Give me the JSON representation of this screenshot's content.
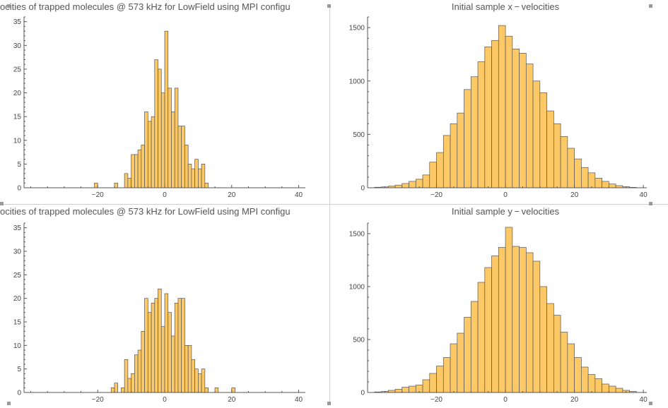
{
  "colors": {
    "bar_fill": "#fdc967",
    "bar_stroke": "#555555",
    "axis": "#555555",
    "title": "#555555"
  },
  "chart_data": [
    {
      "id": "top-left",
      "type": "bar",
      "title": "ocities of trapped molecules @ 573 kHz for LowField using MPI configu",
      "xlim": [
        -42,
        42
      ],
      "ylim": [
        0,
        36
      ],
      "xticks": [
        -20,
        0,
        20,
        40
      ],
      "yticks": [
        0,
        5,
        10,
        15,
        20,
        25,
        30,
        35
      ],
      "bin_width": 1,
      "bins": [
        {
          "x": -21,
          "y": 1
        },
        {
          "x": -15,
          "y": 1
        },
        {
          "x": -12,
          "y": 3
        },
        {
          "x": -11,
          "y": 2
        },
        {
          "x": -10,
          "y": 7
        },
        {
          "x": -9,
          "y": 7
        },
        {
          "x": -8,
          "y": 8
        },
        {
          "x": -7,
          "y": 9
        },
        {
          "x": -6,
          "y": 16
        },
        {
          "x": -5,
          "y": 14
        },
        {
          "x": -4,
          "y": 15
        },
        {
          "x": -3,
          "y": 27
        },
        {
          "x": -2,
          "y": 25
        },
        {
          "x": -1,
          "y": 20
        },
        {
          "x": 0,
          "y": 33
        },
        {
          "x": 1,
          "y": 21
        },
        {
          "x": 2,
          "y": 16
        },
        {
          "x": 3,
          "y": 21
        },
        {
          "x": 4,
          "y": 13
        },
        {
          "x": 5,
          "y": 13
        },
        {
          "x": 6,
          "y": 9
        },
        {
          "x": 7,
          "y": 5
        },
        {
          "x": 8,
          "y": 4
        },
        {
          "x": 9,
          "y": 6
        },
        {
          "x": 10,
          "y": 4
        },
        {
          "x": 11,
          "y": 5
        },
        {
          "x": 12,
          "y": 1
        }
      ]
    },
    {
      "id": "top-right",
      "type": "bar",
      "title": "Initial sample  x − velocities",
      "xlim": [
        -40,
        41
      ],
      "ylim": [
        0,
        1600
      ],
      "xticks": [
        -20,
        0,
        20,
        40
      ],
      "yticks": [
        0,
        500,
        1000,
        1500
      ],
      "bin_width": 2,
      "bins": [
        {
          "x": -38,
          "y": 5
        },
        {
          "x": -36,
          "y": 8
        },
        {
          "x": -34,
          "y": 15
        },
        {
          "x": -32,
          "y": 25
        },
        {
          "x": -30,
          "y": 40
        },
        {
          "x": -28,
          "y": 60
        },
        {
          "x": -26,
          "y": 80
        },
        {
          "x": -24,
          "y": 120
        },
        {
          "x": -22,
          "y": 240
        },
        {
          "x": -20,
          "y": 330
        },
        {
          "x": -18,
          "y": 490
        },
        {
          "x": -16,
          "y": 600
        },
        {
          "x": -14,
          "y": 700
        },
        {
          "x": -12,
          "y": 920
        },
        {
          "x": -10,
          "y": 1040
        },
        {
          "x": -8,
          "y": 1180
        },
        {
          "x": -6,
          "y": 1320
        },
        {
          "x": -4,
          "y": 1380
        },
        {
          "x": -2,
          "y": 1520
        },
        {
          "x": 0,
          "y": 1420
        },
        {
          "x": 2,
          "y": 1300
        },
        {
          "x": 4,
          "y": 1260
        },
        {
          "x": 6,
          "y": 1160
        },
        {
          "x": 8,
          "y": 1000
        },
        {
          "x": 10,
          "y": 890
        },
        {
          "x": 12,
          "y": 720
        },
        {
          "x": 14,
          "y": 600
        },
        {
          "x": 16,
          "y": 480
        },
        {
          "x": 18,
          "y": 370
        },
        {
          "x": 20,
          "y": 270
        },
        {
          "x": 22,
          "y": 190
        },
        {
          "x": 24,
          "y": 140
        },
        {
          "x": 26,
          "y": 90
        },
        {
          "x": 28,
          "y": 60
        },
        {
          "x": 30,
          "y": 35
        },
        {
          "x": 32,
          "y": 20
        },
        {
          "x": 34,
          "y": 10
        },
        {
          "x": 36,
          "y": 4
        }
      ]
    },
    {
      "id": "bottom-left",
      "type": "bar",
      "title": "ocities of trapped molecules @ 573 kHz for LowField using MPI configu",
      "xlim": [
        -42,
        42
      ],
      "ylim": [
        0,
        36
      ],
      "xticks": [
        -20,
        0,
        20,
        40
      ],
      "yticks": [
        0,
        5,
        10,
        15,
        20,
        25,
        30,
        35
      ],
      "bin_width": 1,
      "bins": [
        {
          "x": -16,
          "y": 1
        },
        {
          "x": -15,
          "y": 2
        },
        {
          "x": -13,
          "y": 1
        },
        {
          "x": -12,
          "y": 7
        },
        {
          "x": -11,
          "y": 3
        },
        {
          "x": -10,
          "y": 4
        },
        {
          "x": -9,
          "y": 8
        },
        {
          "x": -8,
          "y": 9
        },
        {
          "x": -7,
          "y": 13
        },
        {
          "x": -6,
          "y": 20
        },
        {
          "x": -5,
          "y": 17
        },
        {
          "x": -4,
          "y": 19
        },
        {
          "x": -3,
          "y": 20
        },
        {
          "x": -2,
          "y": 22
        },
        {
          "x": -1,
          "y": 14
        },
        {
          "x": 0,
          "y": 21
        },
        {
          "x": 1,
          "y": 17
        },
        {
          "x": 2,
          "y": 12
        },
        {
          "x": 3,
          "y": 19
        },
        {
          "x": 4,
          "y": 20
        },
        {
          "x": 5,
          "y": 20
        },
        {
          "x": 6,
          "y": 10
        },
        {
          "x": 7,
          "y": 10
        },
        {
          "x": 8,
          "y": 7
        },
        {
          "x": 9,
          "y": 5
        },
        {
          "x": 10,
          "y": 4
        },
        {
          "x": 11,
          "y": 5
        },
        {
          "x": 12,
          "y": 1
        },
        {
          "x": 15,
          "y": 1
        },
        {
          "x": 20,
          "y": 1
        }
      ]
    },
    {
      "id": "bottom-right",
      "type": "bar",
      "title": "Initial sample  y − velocities",
      "xlim": [
        -40,
        41
      ],
      "ylim": [
        0,
        1600
      ],
      "xticks": [
        -20,
        0,
        20,
        40
      ],
      "yticks": [
        0,
        500,
        1000,
        1500
      ],
      "bin_width": 2,
      "bins": [
        {
          "x": -38,
          "y": 5
        },
        {
          "x": -36,
          "y": 10
        },
        {
          "x": -34,
          "y": 20
        },
        {
          "x": -32,
          "y": 30
        },
        {
          "x": -30,
          "y": 50
        },
        {
          "x": -28,
          "y": 60
        },
        {
          "x": -26,
          "y": 70
        },
        {
          "x": -24,
          "y": 120
        },
        {
          "x": -22,
          "y": 180
        },
        {
          "x": -20,
          "y": 250
        },
        {
          "x": -18,
          "y": 330
        },
        {
          "x": -16,
          "y": 460
        },
        {
          "x": -14,
          "y": 560
        },
        {
          "x": -12,
          "y": 710
        },
        {
          "x": -10,
          "y": 860
        },
        {
          "x": -8,
          "y": 1040
        },
        {
          "x": -6,
          "y": 1180
        },
        {
          "x": -4,
          "y": 1290
        },
        {
          "x": -2,
          "y": 1370
        },
        {
          "x": 0,
          "y": 1560
        },
        {
          "x": 2,
          "y": 1380
        },
        {
          "x": 4,
          "y": 1370
        },
        {
          "x": 6,
          "y": 1320
        },
        {
          "x": 8,
          "y": 1240
        },
        {
          "x": 10,
          "y": 1000
        },
        {
          "x": 12,
          "y": 840
        },
        {
          "x": 14,
          "y": 730
        },
        {
          "x": 16,
          "y": 570
        },
        {
          "x": 18,
          "y": 460
        },
        {
          "x": 20,
          "y": 330
        },
        {
          "x": 22,
          "y": 240
        },
        {
          "x": 24,
          "y": 170
        },
        {
          "x": 26,
          "y": 130
        },
        {
          "x": 28,
          "y": 80
        },
        {
          "x": 30,
          "y": 60
        },
        {
          "x": 32,
          "y": 40
        },
        {
          "x": 34,
          "y": 20
        },
        {
          "x": 36,
          "y": 10
        }
      ]
    }
  ]
}
